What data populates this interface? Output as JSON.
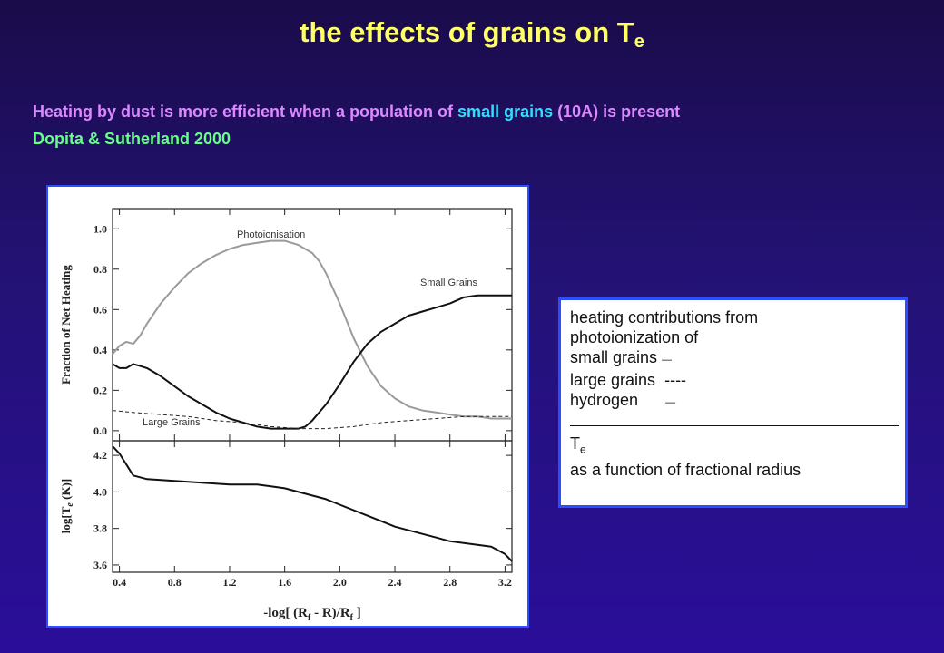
{
  "title": {
    "main": "the effects of grains on T",
    "sub": "e"
  },
  "text": {
    "line1_a": "Heating by dust is more efficient when a population of ",
    "line1_b": "small grains",
    "line1_c": " (10A) is present",
    "line2": "Dopita & Sutherland 2000"
  },
  "legend": {
    "line1": "heating contributions from",
    "line2": "photoionization of",
    "line3": "small grains",
    "line3_mark": "—",
    "line4": "large grains",
    "line4_mark": "----",
    "line5": "hydrogen",
    "line5_mark": "—",
    "line6": "T",
    "line6_sub": "e",
    "line7": "as a function of fractional radius"
  },
  "colors": {
    "title": "#ffff66",
    "line1": "#dd88ff",
    "highlight": "#33ddff",
    "line2": "#66ff88",
    "frame": "#2b4fff"
  },
  "chart_data": [
    {
      "type": "line",
      "ylabel": "Fraction of Net Heating",
      "xlim": [
        0.35,
        3.25
      ],
      "ylim": [
        -0.05,
        1.1
      ],
      "xticks": [
        0.4,
        0.8,
        1.2,
        1.6,
        2.0,
        2.4,
        2.8,
        3.2
      ],
      "yticks": [
        0.0,
        0.2,
        0.4,
        0.6,
        0.8,
        1.0
      ],
      "ytick_labels": [
        "0.0",
        "0.2",
        "0.4",
        "0.6",
        "0.8",
        "1.0"
      ],
      "series": [
        {
          "name": "Photoionisation",
          "style": "gray",
          "x": [
            0.35,
            0.4,
            0.45,
            0.5,
            0.55,
            0.6,
            0.7,
            0.8,
            0.9,
            1.0,
            1.1,
            1.2,
            1.3,
            1.4,
            1.5,
            1.6,
            1.7,
            1.8,
            1.85,
            1.9,
            2.0,
            2.1,
            2.2,
            2.3,
            2.4,
            2.5,
            2.6,
            2.7,
            2.8,
            2.9,
            3.0,
            3.1,
            3.2,
            3.25
          ],
          "y": [
            0.38,
            0.42,
            0.44,
            0.43,
            0.47,
            0.53,
            0.63,
            0.71,
            0.78,
            0.83,
            0.87,
            0.9,
            0.92,
            0.93,
            0.94,
            0.94,
            0.92,
            0.88,
            0.84,
            0.78,
            0.63,
            0.46,
            0.32,
            0.22,
            0.16,
            0.12,
            0.1,
            0.09,
            0.08,
            0.07,
            0.07,
            0.06,
            0.06,
            0.06
          ]
        },
        {
          "name": "Small Grains",
          "style": "black",
          "x": [
            0.35,
            0.4,
            0.45,
            0.5,
            0.55,
            0.6,
            0.7,
            0.8,
            0.9,
            1.0,
            1.1,
            1.2,
            1.3,
            1.4,
            1.5,
            1.6,
            1.7,
            1.75,
            1.8,
            1.9,
            2.0,
            2.1,
            2.2,
            2.3,
            2.4,
            2.5,
            2.6,
            2.7,
            2.8,
            2.9,
            3.0,
            3.1,
            3.2,
            3.25
          ],
          "y": [
            0.33,
            0.31,
            0.31,
            0.33,
            0.32,
            0.31,
            0.27,
            0.22,
            0.17,
            0.13,
            0.09,
            0.06,
            0.04,
            0.02,
            0.01,
            0.01,
            0.01,
            0.02,
            0.05,
            0.13,
            0.23,
            0.34,
            0.43,
            0.49,
            0.53,
            0.57,
            0.59,
            0.61,
            0.63,
            0.66,
            0.67,
            0.67,
            0.67,
            0.67
          ]
        },
        {
          "name": "Large Grains",
          "style": "dashed",
          "x": [
            0.35,
            0.5,
            0.7,
            0.9,
            1.1,
            1.3,
            1.5,
            1.7,
            1.9,
            2.1,
            2.3,
            2.5,
            2.7,
            2.9,
            3.1,
            3.25
          ],
          "y": [
            0.1,
            0.09,
            0.08,
            0.07,
            0.05,
            0.04,
            0.02,
            0.01,
            0.01,
            0.02,
            0.04,
            0.05,
            0.06,
            0.07,
            0.07,
            0.07
          ]
        }
      ]
    },
    {
      "type": "line",
      "ylabel": "log[T",
      "ylabel_sub": "e",
      "ylabel_tail": " (K)]",
      "xlabel": "-log[ (R",
      "xlabel_sub1": "f",
      "xlabel_mid": " - R)/R",
      "xlabel_sub2": "f",
      "xlabel_tail": " ]",
      "xlim": [
        0.35,
        3.25
      ],
      "ylim": [
        3.56,
        4.28
      ],
      "xticks": [
        0.4,
        0.8,
        1.2,
        1.6,
        2.0,
        2.4,
        2.8,
        3.2
      ],
      "xtick_labels": [
        "0.4",
        "0.8",
        "1.2",
        "1.6",
        "2.0",
        "2.4",
        "2.8",
        "3.2"
      ],
      "yticks": [
        3.6,
        3.8,
        4.0,
        4.2
      ],
      "ytick_labels": [
        "3.6",
        "3.8",
        "4.0",
        "4.2"
      ],
      "series": [
        {
          "style": "black",
          "x": [
            0.35,
            0.4,
            0.45,
            0.5,
            0.6,
            0.8,
            1.0,
            1.2,
            1.4,
            1.5,
            1.6,
            1.7,
            1.8,
            1.9,
            2.0,
            2.1,
            2.2,
            2.3,
            2.4,
            2.5,
            2.6,
            2.7,
            2.8,
            2.9,
            3.0,
            3.1,
            3.2,
            3.25
          ],
          "y": [
            4.25,
            4.21,
            4.15,
            4.09,
            4.07,
            4.06,
            4.05,
            4.04,
            4.04,
            4.03,
            4.02,
            4.0,
            3.98,
            3.96,
            3.93,
            3.9,
            3.87,
            3.84,
            3.81,
            3.79,
            3.77,
            3.75,
            3.73,
            3.72,
            3.71,
            3.7,
            3.66,
            3.62
          ]
        }
      ]
    }
  ]
}
